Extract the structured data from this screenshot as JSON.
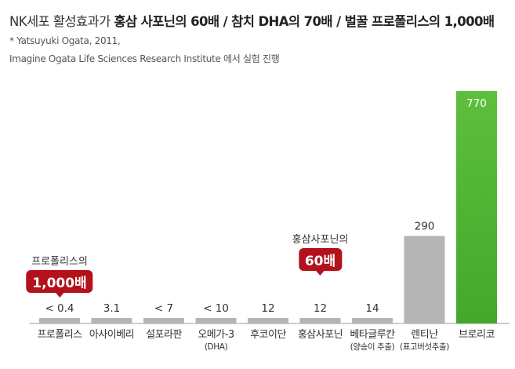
{
  "title": {
    "normal": "NK세포 활성효과가 ",
    "bold": "홍삼 사포닌의 60배 / 참치 DHA의 70배 / 벌꿀 프로폴리스의 1,000배"
  },
  "notes": [
    "* Yatsuyuki Ogata, 2011,",
    "Imagine Ogata Life Sciences Research Institute 에서 실험 진행"
  ],
  "callouts": [
    {
      "label": "프로폴리스의",
      "badge": "1,000배",
      "category_index": 0
    },
    {
      "label": "홍삼사포닌의",
      "badge": "60배",
      "category_index": 5
    }
  ],
  "chart_data": {
    "type": "bar",
    "categories": [
      "프로폴리스",
      "아사이베리",
      "설포라판",
      "오메가-3",
      "후코이단",
      "홍삼사포닌",
      "베타글루칸",
      "렌티난",
      "브로리코"
    ],
    "category_sublabels": [
      "",
      "",
      "",
      "(DHA)",
      "",
      "",
      "(양송이 추출)",
      "(표고버섯추출)",
      ""
    ],
    "values": [
      0.4,
      3.1,
      7,
      10,
      12,
      12,
      14,
      290,
      770
    ],
    "value_labels": [
      "< 0.4",
      "3.1",
      "< 7",
      "< 10",
      "12",
      "12",
      "14",
      "290",
      "770"
    ],
    "bar_colors": [
      "#b5b5b5",
      "#b5b5b5",
      "#b5b5b5",
      "#b5b5b5",
      "#b5b5b5",
      "#b5b5b5",
      "#b5b5b5",
      "#b5b5b5",
      "#5bbf3a"
    ],
    "highlight_index": 8,
    "value_label_color_highlight": "#ffffff",
    "axis_color": "#999999",
    "grid": false,
    "xlabel": "",
    "ylabel": ""
  }
}
